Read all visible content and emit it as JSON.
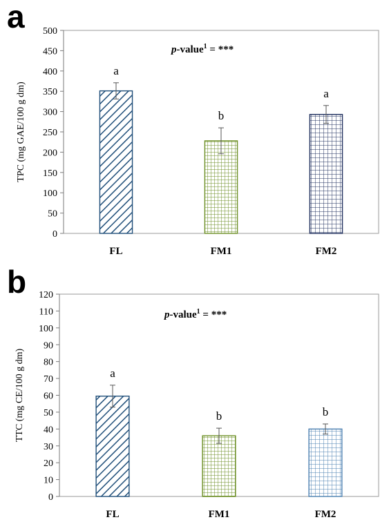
{
  "chart_data": [
    {
      "panel_label": "a",
      "type": "bar",
      "categories": [
        "FL",
        "FM1",
        "FM2"
      ],
      "values": [
        351,
        228,
        293
      ],
      "errors": [
        20,
        32,
        22
      ],
      "significance_letters": [
        "a",
        "b",
        "a"
      ],
      "annotation": {
        "italic": "p",
        "text": "-value",
        "sup": "1",
        "suffix": " = ***"
      },
      "ylabel": "TPC (mg  GAE/100 g dm)",
      "ylim": [
        0,
        500
      ],
      "yticks": [
        0,
        50,
        100,
        150,
        200,
        250,
        300,
        350,
        400,
        450,
        500
      ],
      "grid": false,
      "patterns": [
        "diagonal",
        "grid-fine",
        "grid-medium"
      ],
      "colors": [
        "#1f4e79",
        "#6b8e23",
        "#1f2f5e"
      ]
    },
    {
      "panel_label": "b",
      "type": "bar",
      "categories": [
        "FL",
        "FM1",
        "FM2"
      ],
      "values": [
        59.5,
        36,
        40
      ],
      "errors": [
        6.5,
        4.5,
        3
      ],
      "significance_letters": [
        "a",
        "b",
        "b"
      ],
      "annotation": {
        "italic": "p",
        "text": "-value",
        "sup": "1",
        "suffix": " = ***"
      },
      "ylabel": "TTC (mg CE/100 g dm)",
      "ylim": [
        0,
        120
      ],
      "yticks": [
        0,
        10,
        20,
        30,
        40,
        50,
        60,
        70,
        80,
        90,
        100,
        110,
        120
      ],
      "grid": false,
      "patterns": [
        "diagonal",
        "grid-fine",
        "grid-medium"
      ],
      "colors": [
        "#1f4e79",
        "#6b8e23",
        "#4a7fb0"
      ]
    }
  ]
}
